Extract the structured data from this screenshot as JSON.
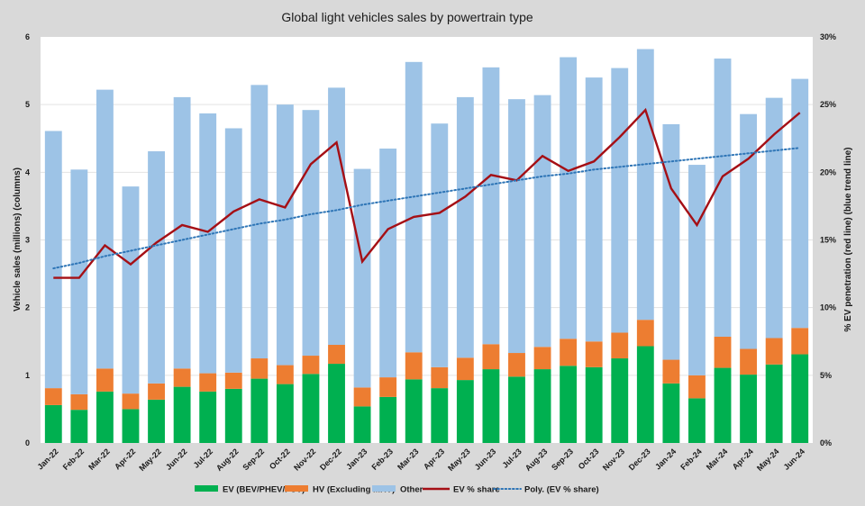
{
  "chart_data": {
    "type": "bar",
    "subtype": "stacked-bar-with-line",
    "title": "Global light vehicles sales by powertrain type",
    "xlabel": "",
    "ylabel": "Vehicle sales (millions) (columns)",
    "y2label": "% EV penetration (red line) (blue trend line)",
    "ylim": [
      0,
      6
    ],
    "y2lim": [
      0,
      30
    ],
    "yticks": [
      "0",
      "1",
      "2",
      "3",
      "4",
      "5",
      "6"
    ],
    "y2ticks": [
      "0%",
      "5%",
      "10%",
      "15%",
      "20%",
      "25%",
      "30%"
    ],
    "grid": true,
    "legend_position": "bottom",
    "categories": [
      "Jan-22",
      "Feb-22",
      "Mar-22",
      "Apr-22",
      "May-22",
      "Jun-22",
      "Jul-22",
      "Aug-22",
      "Sep-22",
      "Oct-22",
      "Nov-22",
      "Dec-22",
      "Jan-23",
      "Feb-23",
      "Mar-23",
      "Apr-23",
      "May-23",
      "Jun-23",
      "Jul-23",
      "Aug-23",
      "Sep-23",
      "Oct-23",
      "Nov-23",
      "Dec-23",
      "Jan-24",
      "Feb-24",
      "Mar-24",
      "Apr-24",
      "May-24",
      "Jun-24"
    ],
    "series": [
      {
        "name": "EV (BEV/PHEV/FCV)",
        "kind": "bar",
        "axis": "left",
        "color": "#00b050",
        "values": [
          0.56,
          0.49,
          0.76,
          0.5,
          0.64,
          0.83,
          0.76,
          0.8,
          0.95,
          0.87,
          1.02,
          1.17,
          0.54,
          0.68,
          0.94,
          0.81,
          0.93,
          1.09,
          0.98,
          1.09,
          1.14,
          1.12,
          1.25,
          1.43,
          0.88,
          0.66,
          1.11,
          1.01,
          1.16,
          1.31
        ]
      },
      {
        "name": "HV (Excluding MHV)",
        "kind": "bar",
        "axis": "left",
        "color": "#ed7d31",
        "values": [
          0.25,
          0.23,
          0.34,
          0.23,
          0.24,
          0.27,
          0.27,
          0.24,
          0.3,
          0.28,
          0.27,
          0.28,
          0.28,
          0.29,
          0.4,
          0.31,
          0.33,
          0.37,
          0.35,
          0.33,
          0.4,
          0.38,
          0.38,
          0.39,
          0.35,
          0.34,
          0.46,
          0.38,
          0.39,
          0.39
        ]
      },
      {
        "name": "Other",
        "kind": "bar",
        "axis": "left",
        "color": "#9dc3e6",
        "values": [
          3.8,
          3.32,
          4.12,
          3.06,
          3.43,
          4.01,
          3.84,
          3.61,
          4.04,
          3.85,
          3.63,
          3.8,
          3.23,
          3.38,
          4.29,
          3.6,
          3.85,
          4.09,
          3.75,
          3.72,
          4.16,
          3.9,
          3.91,
          4.0,
          3.48,
          3.11,
          4.11,
          3.47,
          3.55,
          3.68
        ]
      },
      {
        "name": "EV % share",
        "kind": "line",
        "axis": "right",
        "color": "#a50f15",
        "values": [
          12.2,
          12.2,
          14.6,
          13.2,
          14.8,
          16.1,
          15.6,
          17.1,
          18.0,
          17.4,
          20.6,
          22.2,
          13.4,
          15.8,
          16.7,
          17.0,
          18.2,
          19.8,
          19.4,
          21.2,
          20.1,
          20.8,
          22.6,
          24.6,
          18.8,
          16.1,
          19.7,
          21.0,
          22.8,
          24.4
        ]
      },
      {
        "name": "Poly. (EV % share)",
        "kind": "trendline",
        "axis": "right",
        "color": "#2e75b6",
        "style": "dotted",
        "values": [
          12.9,
          13.3,
          13.8,
          14.2,
          14.6,
          15.0,
          15.4,
          15.8,
          16.2,
          16.5,
          16.9,
          17.2,
          17.6,
          17.9,
          18.2,
          18.5,
          18.8,
          19.1,
          19.4,
          19.7,
          19.9,
          20.2,
          20.4,
          20.6,
          20.8,
          21.0,
          21.2,
          21.4,
          21.6,
          21.8
        ]
      }
    ]
  },
  "legend": [
    {
      "label": "EV (BEV/PHEV/FCV)",
      "swatch": "bar",
      "color": "#00b050"
    },
    {
      "label": "HV (Excluding MHV)",
      "swatch": "bar",
      "color": "#ed7d31"
    },
    {
      "label": "Other",
      "swatch": "bar",
      "color": "#9dc3e6"
    },
    {
      "label": "EV % share",
      "swatch": "line",
      "color": "#a50f15"
    },
    {
      "label": "Poly. (EV % share)",
      "swatch": "dotted",
      "color": "#2e75b6"
    }
  ]
}
